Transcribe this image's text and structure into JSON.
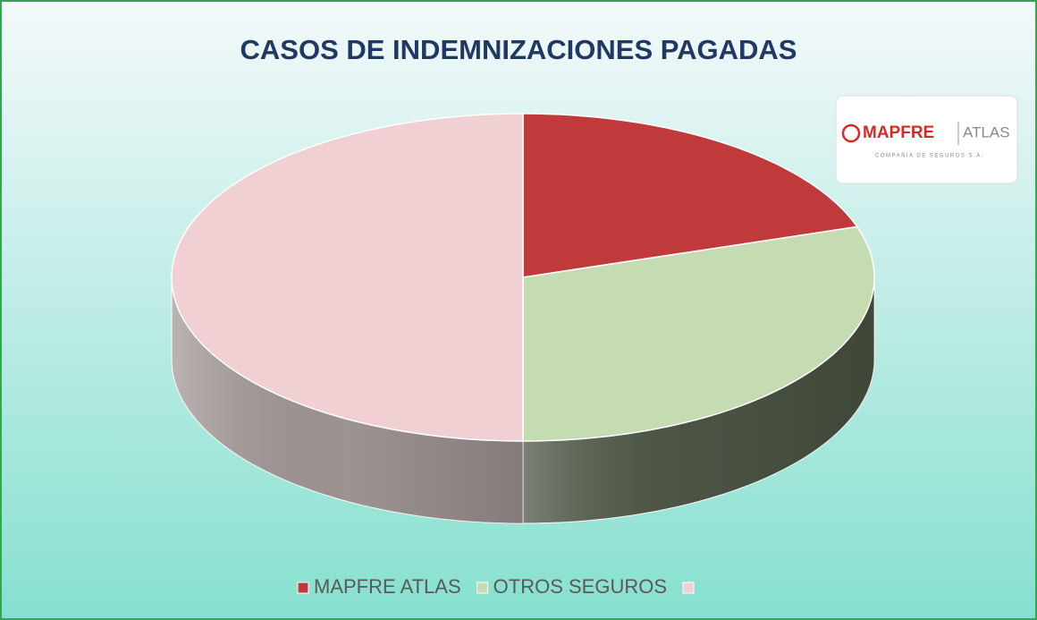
{
  "chart_data": {
    "type": "pie3d",
    "title": "CASOS DE INDEMNIZACIONES PAGADAS",
    "categories": [
      "MAPFRE ATLAS",
      "OTROS SEGUROS",
      null
    ],
    "values": [
      20,
      30,
      50
    ],
    "colors": [
      "#c0393b",
      "#c5dcb2",
      "#f0d0d2"
    ],
    "side_colors": [
      "#8a2a2b",
      "#4f5847",
      "#a59b99"
    ],
    "legend": "bottom",
    "logo": {
      "brand": "MAPFRE",
      "name": "ATLAS",
      "tagline": "COMPAÑÍA DE SEGUROS S.A."
    }
  }
}
